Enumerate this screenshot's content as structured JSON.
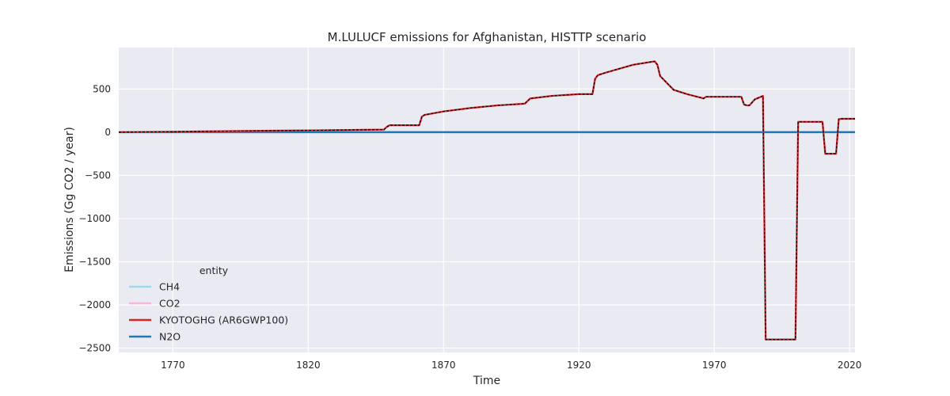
{
  "chart_data": {
    "type": "line",
    "title": "M.LULUCF emissions for Afghanistan, HISTTP scenario",
    "xlabel": "Time",
    "ylabel": "Emissions (Gg CO2 / year)",
    "xlim": [
      1750,
      2022
    ],
    "ylim": [
      -2550,
      980
    ],
    "xticks": [
      1770,
      1820,
      1870,
      1920,
      1970,
      2020
    ],
    "yticks": [
      500,
      0,
      -500,
      -1000,
      -1500,
      -2000,
      -2500
    ],
    "grid": true,
    "legend": {
      "title": "entity",
      "placement": "lower-left"
    },
    "series": [
      {
        "name": "CH4",
        "color": "#9edae5",
        "x": [
          1750,
          2022
        ],
        "y": [
          0,
          0
        ]
      },
      {
        "name": "CO2",
        "color": "#f7b6d2",
        "x": [
          1750,
          1770,
          1800,
          1820,
          1848,
          1849,
          1850,
          1860,
          1861,
          1862,
          1863,
          1870,
          1880,
          1890,
          1900,
          1901,
          1902,
          1910,
          1920,
          1925,
          1926,
          1927,
          1930,
          1940,
          1948,
          1949,
          1950,
          1955,
          1960,
          1965,
          1966,
          1967,
          1970,
          1975,
          1980,
          1981,
          1982,
          1983,
          1985,
          1988,
          1989,
          1990,
          1999,
          2000,
          2001,
          2010,
          2011,
          2012,
          2015,
          2016,
          2017,
          2022
        ],
        "y": [
          0,
          5,
          15,
          20,
          30,
          60,
          80,
          80,
          80,
          180,
          200,
          240,
          280,
          310,
          330,
          360,
          390,
          420,
          440,
          440,
          620,
          660,
          690,
          780,
          820,
          780,
          650,
          490,
          440,
          400,
          390,
          410,
          410,
          410,
          410,
          320,
          310,
          310,
          380,
          420,
          -2400,
          -2400,
          -2400,
          -2400,
          120,
          120,
          -250,
          -250,
          -250,
          150,
          155,
          155
        ]
      },
      {
        "name": "KYOTOGHG (AR6GWP100)",
        "color": "#d62728",
        "x": [
          1750,
          1770,
          1800,
          1820,
          1848,
          1849,
          1850,
          1860,
          1861,
          1862,
          1863,
          1870,
          1880,
          1890,
          1900,
          1901,
          1902,
          1910,
          1920,
          1925,
          1926,
          1927,
          1930,
          1940,
          1948,
          1949,
          1950,
          1955,
          1960,
          1965,
          1966,
          1967,
          1970,
          1975,
          1980,
          1981,
          1982,
          1983,
          1985,
          1988,
          1989,
          1990,
          1999,
          2000,
          2001,
          2010,
          2011,
          2012,
          2015,
          2016,
          2017,
          2022
        ],
        "y": [
          0,
          5,
          15,
          20,
          30,
          60,
          80,
          80,
          80,
          180,
          200,
          240,
          280,
          310,
          330,
          360,
          390,
          420,
          440,
          440,
          620,
          660,
          690,
          780,
          820,
          780,
          650,
          490,
          440,
          400,
          390,
          410,
          410,
          410,
          410,
          320,
          310,
          310,
          380,
          420,
          -2400,
          -2400,
          -2400,
          -2400,
          120,
          120,
          -250,
          -250,
          -250,
          150,
          155,
          155
        ]
      },
      {
        "name": "N2O",
        "color": "#1f77b4",
        "x": [
          1750,
          2022
        ],
        "y": [
          0,
          0
        ]
      }
    ]
  }
}
